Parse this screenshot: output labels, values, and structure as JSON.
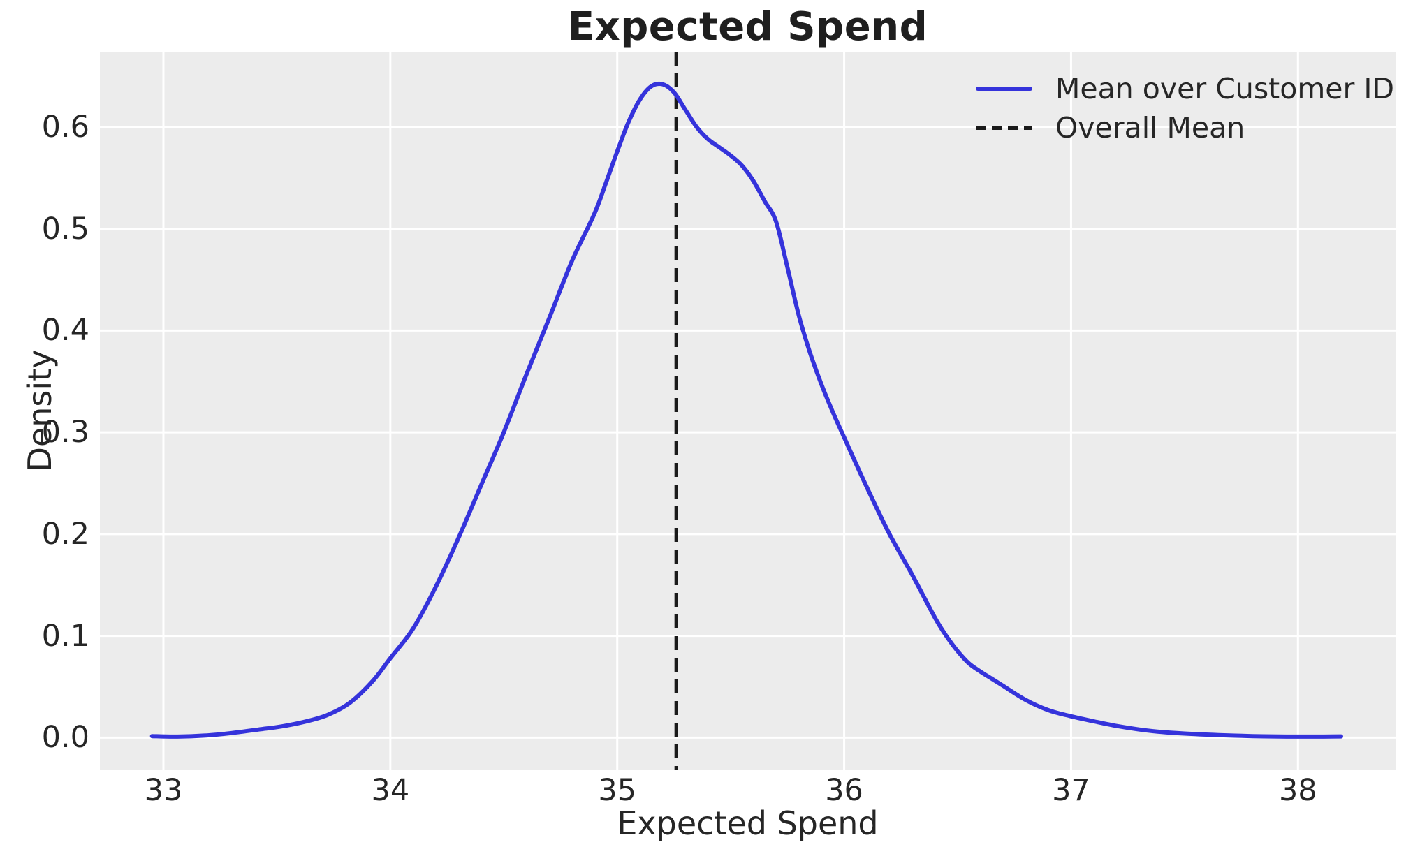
{
  "title": "Expected Spend",
  "colors": {
    "figure_bg": "#ffffff",
    "plot_bg": "#ececec",
    "grid": "#ffffff",
    "text": "#262626",
    "kde_line": "#3533db",
    "mean_line": "#1a1a1a"
  },
  "chart_data": {
    "type": "line",
    "subtype": "kde-density",
    "title": "Expected Spend",
    "xlabel": "Expected Spend",
    "ylabel": "Density",
    "xlim": [
      32.72,
      38.43
    ],
    "ylim": [
      -0.032,
      0.674
    ],
    "x_ticks": [
      33,
      34,
      35,
      36,
      37,
      38
    ],
    "x_tick_labels": [
      "33",
      "34",
      "35",
      "36",
      "37",
      "38"
    ],
    "y_ticks": [
      0.0,
      0.1,
      0.2,
      0.3,
      0.4,
      0.5,
      0.6
    ],
    "y_tick_labels": [
      "0.0",
      "0.1",
      "0.2",
      "0.3",
      "0.4",
      "0.5",
      "0.6"
    ],
    "grid": true,
    "legend_position": "upper right",
    "series": [
      {
        "name": "Mean over Customer ID",
        "color": "#3533db",
        "style": "solid",
        "peak": [
          35.17,
          0.643
        ],
        "points": [
          [
            32.95,
            0.0015
          ],
          [
            33.05,
            0.001
          ],
          [
            33.18,
            0.002
          ],
          [
            33.3,
            0.0045
          ],
          [
            33.42,
            0.008
          ],
          [
            33.52,
            0.011
          ],
          [
            33.62,
            0.0155
          ],
          [
            33.72,
            0.022
          ],
          [
            33.82,
            0.034
          ],
          [
            33.92,
            0.055
          ],
          [
            34.0,
            0.078
          ],
          [
            34.1,
            0.107
          ],
          [
            34.2,
            0.148
          ],
          [
            34.3,
            0.196
          ],
          [
            34.4,
            0.248
          ],
          [
            34.5,
            0.3
          ],
          [
            34.6,
            0.357
          ],
          [
            34.7,
            0.412
          ],
          [
            34.8,
            0.468
          ],
          [
            34.9,
            0.515
          ],
          [
            34.95,
            0.545
          ],
          [
            35.0,
            0.576
          ],
          [
            35.05,
            0.605
          ],
          [
            35.1,
            0.627
          ],
          [
            35.15,
            0.64
          ],
          [
            35.2,
            0.642
          ],
          [
            35.25,
            0.634
          ],
          [
            35.3,
            0.617
          ],
          [
            35.35,
            0.6
          ],
          [
            35.4,
            0.588
          ],
          [
            35.45,
            0.58
          ],
          [
            35.5,
            0.572
          ],
          [
            35.55,
            0.562
          ],
          [
            35.6,
            0.547
          ],
          [
            35.65,
            0.527
          ],
          [
            35.7,
            0.507
          ],
          [
            35.75,
            0.462
          ],
          [
            35.8,
            0.415
          ],
          [
            35.85,
            0.378
          ],
          [
            35.9,
            0.347
          ],
          [
            35.95,
            0.32
          ],
          [
            36.0,
            0.295
          ],
          [
            36.1,
            0.246
          ],
          [
            36.2,
            0.2
          ],
          [
            36.3,
            0.16
          ],
          [
            36.4,
            0.118
          ],
          [
            36.45,
            0.1
          ],
          [
            36.5,
            0.085
          ],
          [
            36.55,
            0.073
          ],
          [
            36.6,
            0.065
          ],
          [
            36.65,
            0.058
          ],
          [
            36.7,
            0.051
          ],
          [
            36.8,
            0.037
          ],
          [
            36.9,
            0.027
          ],
          [
            37.0,
            0.021
          ],
          [
            37.1,
            0.016
          ],
          [
            37.2,
            0.0115
          ],
          [
            37.3,
            0.008
          ],
          [
            37.4,
            0.0055
          ],
          [
            37.5,
            0.004
          ],
          [
            37.65,
            0.0025
          ],
          [
            37.8,
            0.0015
          ],
          [
            37.95,
            0.001
          ],
          [
            38.08,
            0.001
          ],
          [
            38.19,
            0.0012
          ]
        ]
      }
    ],
    "vline": {
      "name": "Overall Mean",
      "x": 35.26,
      "color": "#1a1a1a",
      "style": "dashed"
    }
  },
  "legend": {
    "items": [
      {
        "label": "Mean over Customer ID",
        "style": "solid"
      },
      {
        "label": "Overall Mean",
        "style": "dashed"
      }
    ]
  }
}
